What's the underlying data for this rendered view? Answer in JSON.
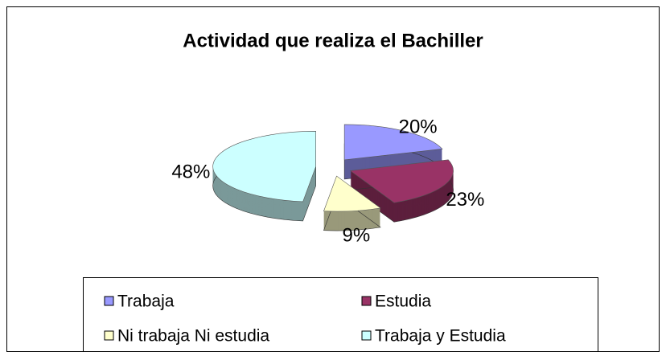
{
  "chart_data": {
    "type": "pie",
    "title": "Actividad que realiza el Bachiller",
    "categories": [
      "Trabaja",
      "Estudia",
      "Ni trabaja  Ni estudia",
      "Trabaja y Estudia"
    ],
    "values": [
      20,
      23,
      9,
      48
    ],
    "value_labels": [
      "20%",
      "23%",
      "9%",
      "48%"
    ],
    "colors": [
      "#9999ff",
      "#993366",
      "#ffffcc",
      "#ccffff"
    ],
    "legend": "bottom"
  }
}
